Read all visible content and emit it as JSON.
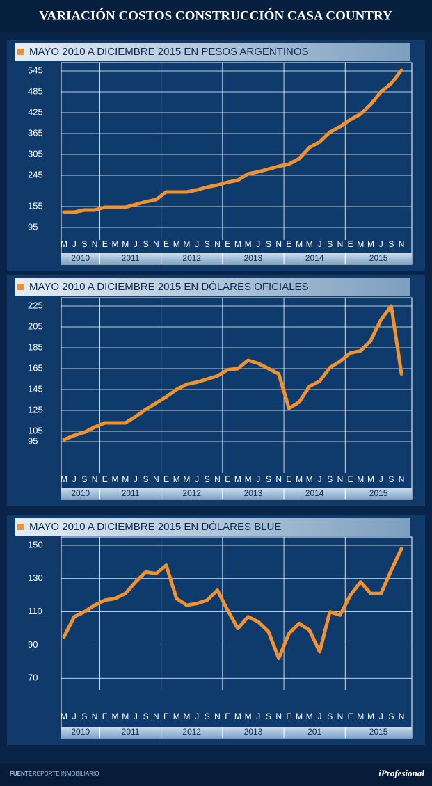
{
  "title": "VARIACIÓN COSTOS CONSTRUCCIÓN CASA COUNTRY",
  "chart_data": [
    {
      "type": "line",
      "title": "MAYO 2010 A DICIEMBRE 2015 EN PESOS ARGENTINOS",
      "categories": [
        "M",
        "J",
        "S",
        "N",
        "E",
        "M",
        "M",
        "J",
        "S",
        "N",
        "E",
        "M",
        "M",
        "J",
        "S",
        "N",
        "E",
        "M",
        "M",
        "J",
        "S",
        "N",
        "E",
        "M",
        "M",
        "J",
        "S",
        "N",
        "E",
        "M",
        "M",
        "J",
        "S",
        "N"
      ],
      "year_labels": [
        "2010",
        "2011",
        "2012",
        "2013",
        "2014",
        "2015"
      ],
      "color": "#f0922e",
      "values": [
        139,
        139,
        145,
        145,
        153,
        153,
        153,
        161,
        169,
        175,
        197,
        197,
        197,
        203,
        211,
        217,
        225,
        231,
        249,
        255,
        263,
        271,
        277,
        293,
        325,
        341,
        369,
        385,
        405,
        421,
        449,
        485,
        509,
        547
      ],
      "ylim": [
        59,
        569
      ],
      "yticks": [
        545,
        485,
        425,
        365,
        305,
        245,
        155,
        95
      ],
      "grid": true
    },
    {
      "type": "line",
      "title": "MAYO 2010 A DICIEMBRE 2015 EN DÓLARES OFICIALES",
      "categories": [
        "M",
        "J",
        "S",
        "N",
        "E",
        "M",
        "M",
        "J",
        "S",
        "N",
        "E",
        "M",
        "M",
        "J",
        "S",
        "N",
        "E",
        "M",
        "M",
        "J",
        "S",
        "N",
        "E",
        "M",
        "M",
        "J",
        "S",
        "N",
        "E",
        "M",
        "M",
        "J",
        "S",
        "N"
      ],
      "year_labels": [
        "2010",
        "2011",
        "2012",
        "2013",
        "2014",
        "2015"
      ],
      "color": "#f0922e",
      "values": [
        97,
        101,
        104,
        109,
        113,
        113,
        113,
        119,
        126,
        132,
        138,
        145,
        150,
        152,
        155,
        158,
        164,
        165,
        173,
        170,
        165,
        160,
        127,
        133,
        148,
        153,
        166,
        172,
        180,
        182,
        192,
        212,
        225,
        160
      ],
      "ylim": [
        65,
        233
      ],
      "yticks": [
        225,
        205,
        185,
        165,
        145,
        125,
        105,
        95
      ],
      "grid": true
    },
    {
      "type": "line",
      "title": "MAYO 2010 A DICIEMBRE 2015 EN DÓLARES BLUE",
      "categories": [
        "M",
        "J",
        "S",
        "N",
        "E",
        "M",
        "M",
        "J",
        "S",
        "N",
        "E",
        "M",
        "M",
        "J",
        "S",
        "N",
        "E",
        "M",
        "M",
        "J",
        "S",
        "N",
        "E",
        "M",
        "M",
        "J",
        "S",
        "N",
        "E",
        "M",
        "M",
        "J",
        "S",
        "N"
      ],
      "year_labels": [
        "2010",
        "2011",
        "2012",
        "2013",
        "201",
        "2015"
      ],
      "color": "#f0922e",
      "values": [
        95,
        107,
        110,
        114,
        117,
        118,
        121,
        128,
        134,
        133,
        138,
        118,
        114,
        115,
        117,
        123,
        111,
        100,
        107,
        104,
        98,
        82,
        97,
        103,
        99,
        86,
        110,
        108,
        120,
        128,
        121,
        121,
        135,
        148
      ],
      "ylim": [
        63,
        155
      ],
      "yticks": [
        150,
        130,
        110,
        90,
        70
      ],
      "grid": true
    }
  ],
  "footer": {
    "source_label": "FUENTE:",
    "source": "REPORTE INMOBILIARIO",
    "brand": "iProfesional"
  }
}
